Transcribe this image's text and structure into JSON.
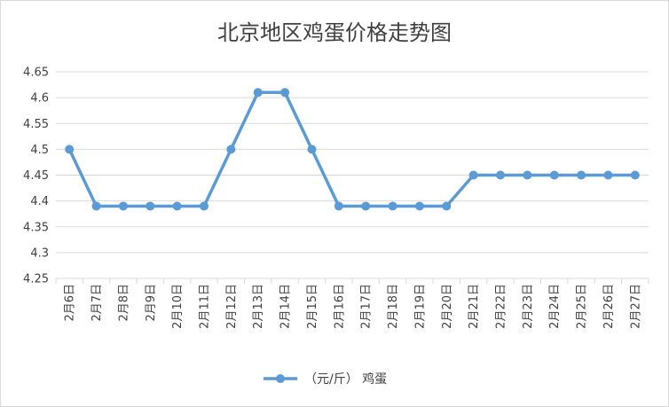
{
  "chart_data": {
    "type": "line",
    "title": "北京地区鸡蛋价格走势图",
    "categories": [
      "2月6日",
      "2月7日",
      "2月8日",
      "2月9日",
      "2月10日",
      "2月11日",
      "2月12日",
      "2月13日",
      "2月14日",
      "2月15日",
      "2月16日",
      "2月17日",
      "2月18日",
      "2月19日",
      "2月20日",
      "2月21日",
      "2月22日",
      "2月23日",
      "2月24日",
      "2月25日",
      "2月26日",
      "2月27日"
    ],
    "series": [
      {
        "name": "（元/斤） 鸡蛋",
        "values": [
          4.5,
          4.39,
          4.39,
          4.39,
          4.39,
          4.39,
          4.5,
          4.61,
          4.61,
          4.5,
          4.39,
          4.39,
          4.39,
          4.39,
          4.39,
          4.45,
          4.45,
          4.45,
          4.45,
          4.45,
          4.45,
          4.45
        ]
      }
    ],
    "yticks": [
      "4.25",
      "4.3",
      "4.35",
      "4.4",
      "4.45",
      "4.5",
      "4.55",
      "4.6",
      "4.65"
    ],
    "ylim": [
      4.25,
      4.65
    ],
    "grid": true,
    "legend_position": "bottom",
    "colors": {
      "line": "#5b9bd5",
      "grid": "#d9d9d9",
      "text": "#404040"
    }
  }
}
